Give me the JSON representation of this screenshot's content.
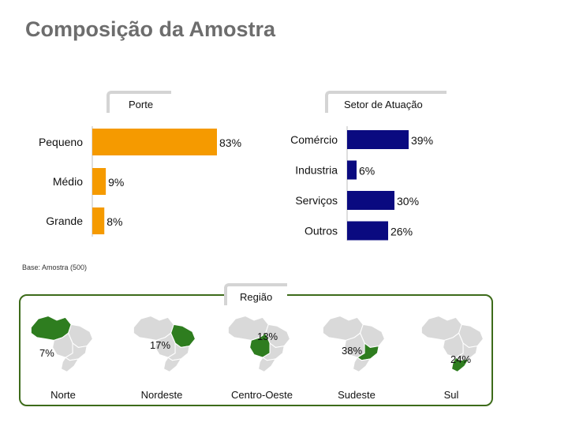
{
  "title": "Composição da Amostra",
  "base_note": "Base: Amostra (500)",
  "chart_data": [
    {
      "type": "bar",
      "orientation": "horizontal",
      "title": "Porte",
      "categories": [
        "Pequeno",
        "Médio",
        "Grande"
      ],
      "values": [
        83,
        9,
        8
      ],
      "labels": [
        "83%",
        "9%",
        "8%"
      ],
      "color": "#f59a00",
      "xlim": [
        0,
        100
      ]
    },
    {
      "type": "bar",
      "orientation": "horizontal",
      "title": "Setor de Atuação",
      "categories": [
        "Comércio",
        "Industria",
        "Serviços",
        "Outros"
      ],
      "values": [
        39,
        6,
        30,
        26
      ],
      "labels": [
        "39%",
        "6%",
        "30%",
        "26%"
      ],
      "color": "#0a0a80",
      "xlim": [
        0,
        100
      ]
    }
  ],
  "region": {
    "title": "Região",
    "highlight_color": "#2e7d1f",
    "base_color": "#d9d9d9",
    "items": [
      {
        "name": "Norte",
        "value": 7,
        "label": "7%"
      },
      {
        "name": "Nordeste",
        "value": 17,
        "label": "17%"
      },
      {
        "name": "Centro-Oeste",
        "value": 13,
        "label": "13%"
      },
      {
        "name": "Sudeste",
        "value": 38,
        "label": "38%"
      },
      {
        "name": "Sul",
        "value": 24,
        "label": "24%"
      }
    ]
  }
}
